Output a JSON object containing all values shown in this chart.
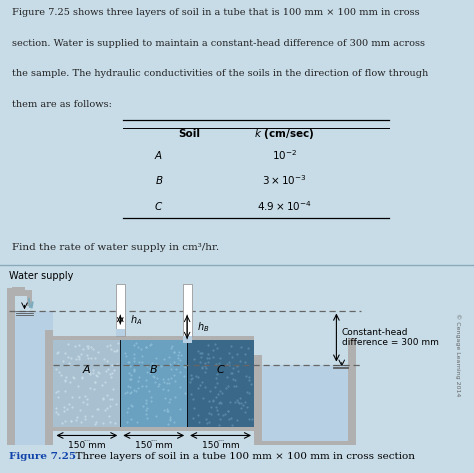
{
  "bg_top": "#c8dce8",
  "bg_diag": "#b8d0e4",
  "text_color": "#222222",
  "title_text_lines": [
    "Figure 7.25 shows three layers of soil in a tube that is 100 mm × 100 mm in cross",
    "section. Water is supplied to maintain a constant-head difference of 300 mm across",
    "the sample. The hydraulic conductivities of the soils in the direction of flow through",
    "them are as follows:"
  ],
  "find_text": "Find the rate of water supply in cm³/hr.",
  "water_supply_label": "Water supply",
  "constant_head_label": "Constant-head\ndifference = 300 mm",
  "fig_caption_bold": "Figure 7.25",
  "fig_caption_rest": "  Three layers of soil in a tube 100 mm × 100 mm in cross section",
  "soil_A_color": "#a8c0d0",
  "soil_B_color": "#6aa0c0",
  "soil_C_color": "#3a6888",
  "soil_dot_A": "#c8dce8",
  "soil_dot_B": "#8abcd4",
  "soil_dot_C": "#5a8aac",
  "wall_color": "#b0b0b0",
  "wall_dark": "#989898",
  "water_color": "#b8d0e4",
  "pipe_color": "#e8e8e8",
  "dashed_color": "#666666",
  "copyright_color": "#666666"
}
